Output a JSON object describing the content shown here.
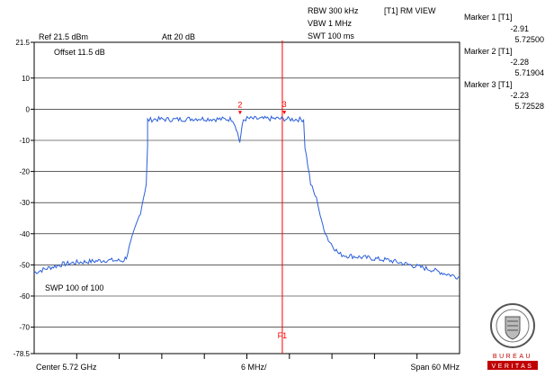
{
  "header": {
    "rbw": "RBW 300 kHz",
    "vbw": "VBW 1 MHz",
    "swt": "SWT 100 ms",
    "view": "[T1] RM VIEW",
    "ref": "Ref 21.5 dBm",
    "att": "Att  20 dB",
    "offset": "Offset 11.5 dB",
    "sweep": "SWP 100 of 100"
  },
  "markers": [
    {
      "name": "Marker 1 [T1]",
      "level": "-2.91",
      "freq": "5.72500"
    },
    {
      "name": "Marker 2 [T1]",
      "level": "-2.28",
      "freq": "5.71904"
    },
    {
      "name": "Marker 3 [T1]",
      "level": "-2.23",
      "freq": "5.72528"
    }
  ],
  "footer": {
    "center": "Center 5.72 GHz",
    "div": "6 MHz/",
    "span": "Span 60 MHz"
  },
  "logo": {
    "name": "BUREAU VERITAS",
    "year": "1828"
  },
  "colors": {
    "trace": "#2b5fd9",
    "marker": "#ff0000",
    "grid": "#000000"
  },
  "chart_data": {
    "type": "line",
    "title": "",
    "xlabel": "",
    "ylabel": "",
    "xlim": [
      5.69,
      5.75
    ],
    "ylim": [
      -78.5,
      21.5
    ],
    "y_ticks": [
      21.5,
      10,
      0,
      -10,
      -20,
      -30,
      -40,
      -50,
      -60,
      -70,
      -78.5
    ],
    "y_tick_labels": [
      "21.5",
      "10",
      "0",
      "-10",
      "-20",
      "-30",
      "-40",
      "-50",
      "-60",
      "-70",
      "-78.5"
    ],
    "grid": true,
    "series": [
      {
        "x": [
          5.69,
          5.692,
          5.694,
          5.696,
          5.698,
          5.7,
          5.7015,
          5.7025,
          5.703,
          5.704,
          5.705,
          5.7058,
          5.706,
          5.706,
          5.707,
          5.71,
          5.713,
          5.716,
          5.718,
          5.7185,
          5.719,
          5.7195,
          5.72,
          5.722,
          5.724,
          5.726,
          5.728,
          5.7282,
          5.729,
          5.73,
          5.7305,
          5.7315,
          5.733,
          5.734,
          5.736,
          5.738,
          5.74,
          5.742,
          5.744,
          5.746,
          5.748,
          5.75
        ],
        "y": [
          -52.5,
          -51.0,
          -49.8,
          -49.2,
          -48.9,
          -48.5,
          -48.6,
          -48.7,
          -47.5,
          -40.0,
          -33.0,
          -24.0,
          -12.0,
          -3.5,
          -3.2,
          -3.3,
          -3.0,
          -3.2,
          -3.2,
          -6.0,
          -10.5,
          -3.5,
          -3.0,
          -3.1,
          -3.0,
          -3.2,
          -3.3,
          -12.0,
          -24.0,
          -30.0,
          -36.0,
          -42.0,
          -46.5,
          -47.0,
          -47.5,
          -48.0,
          -48.5,
          -49.5,
          -50.5,
          -51.5,
          -52.8,
          -54.0
        ]
      }
    ],
    "markers": [
      {
        "label": "1",
        "x": 5.725,
        "y": -2.91
      },
      {
        "label": "2",
        "x": 5.71904,
        "y": -2.28
      },
      {
        "label": "3",
        "x": 5.72528,
        "y": -2.23
      }
    ],
    "center_line_label": "F1",
    "center_line_x": 5.725
  }
}
